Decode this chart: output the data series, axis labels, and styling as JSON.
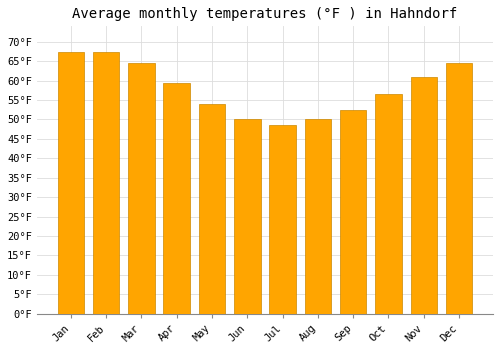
{
  "title": "Average monthly temperatures (°F ) in Hahndorf",
  "months": [
    "Jan",
    "Feb",
    "Mar",
    "Apr",
    "May",
    "Jun",
    "Jul",
    "Aug",
    "Sep",
    "Oct",
    "Nov",
    "Dec"
  ],
  "values": [
    67.5,
    67.5,
    64.5,
    59.5,
    54.0,
    50.0,
    48.5,
    50.0,
    52.5,
    56.5,
    61.0,
    64.5
  ],
  "bar_color": "#FFA500",
  "bar_edge_color": "#CC8800",
  "background_color": "#FFFFFF",
  "grid_color": "#DDDDDD",
  "ylim": [
    0,
    74
  ],
  "yticks": [
    0,
    5,
    10,
    15,
    20,
    25,
    30,
    35,
    40,
    45,
    50,
    55,
    60,
    65,
    70
  ],
  "title_fontsize": 10,
  "tick_fontsize": 7.5,
  "bar_width": 0.75
}
